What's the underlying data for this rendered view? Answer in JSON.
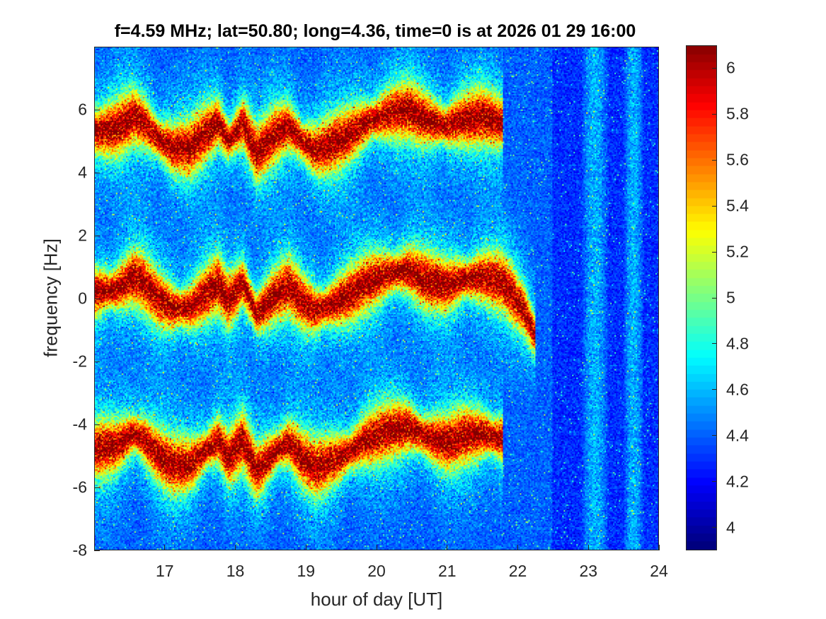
{
  "chart_data": {
    "type": "heatmap",
    "title": "f=4.59 MHz;  lat=50.80; long=4.36, time=0 is at 2026 01 29 16:00",
    "xlabel": "hour of day [UT]",
    "ylabel": "frequency [Hz]",
    "xlim": [
      16,
      24
    ],
    "ylim": [
      -8,
      8
    ],
    "x_ticks": [
      "17",
      "18",
      "19",
      "20",
      "21",
      "22",
      "23",
      "24"
    ],
    "y_ticks": [
      "6",
      "4",
      "2",
      "0",
      "-2",
      "-4",
      "-6",
      "-8"
    ],
    "colorbar": {
      "colormap": "jet",
      "clim": [
        3.9,
        6.1
      ],
      "ticks": [
        "6",
        "5.8",
        "5.6",
        "5.4",
        "5.2",
        "5",
        "4.8",
        "4.6",
        "4.4",
        "4.2",
        "4"
      ]
    },
    "traces": [
      {
        "offset": 0,
        "points": [
          [
            16.0,
            0.2
          ],
          [
            16.3,
            0.3
          ],
          [
            16.55,
            0.7
          ],
          [
            16.7,
            0.5
          ],
          [
            16.9,
            0.0
          ],
          [
            17.1,
            -0.3
          ],
          [
            17.35,
            -0.3
          ],
          [
            17.55,
            0.1
          ],
          [
            17.75,
            0.5
          ],
          [
            17.9,
            -0.1
          ],
          [
            18.1,
            0.5
          ],
          [
            18.3,
            -0.5
          ],
          [
            18.55,
            0.1
          ],
          [
            18.75,
            0.4
          ],
          [
            18.95,
            -0.1
          ],
          [
            19.15,
            -0.4
          ],
          [
            19.35,
            -0.2
          ],
          [
            19.6,
            0.1
          ],
          [
            19.85,
            0.5
          ],
          [
            20.2,
            0.8
          ],
          [
            20.45,
            0.9
          ],
          [
            20.7,
            0.6
          ],
          [
            21.0,
            0.4
          ],
          [
            21.2,
            0.6
          ],
          [
            21.5,
            0.7
          ],
          [
            21.8,
            0.5
          ],
          [
            22.1,
            -0.4
          ],
          [
            22.25,
            -1.2
          ]
        ]
      },
      {
        "offset": 5.1,
        "points": [
          [
            16.0,
            0.2
          ],
          [
            16.3,
            0.3
          ],
          [
            16.55,
            0.7
          ],
          [
            16.7,
            0.5
          ],
          [
            16.9,
            0.0
          ],
          [
            17.1,
            -0.3
          ],
          [
            17.35,
            -0.3
          ],
          [
            17.55,
            0.1
          ],
          [
            17.75,
            0.5
          ],
          [
            17.9,
            -0.1
          ],
          [
            18.1,
            0.5
          ],
          [
            18.3,
            -0.5
          ],
          [
            18.55,
            0.1
          ],
          [
            18.75,
            0.4
          ],
          [
            18.95,
            -0.1
          ],
          [
            19.15,
            -0.4
          ],
          [
            19.35,
            -0.2
          ],
          [
            19.6,
            0.1
          ],
          [
            19.85,
            0.5
          ],
          [
            20.2,
            0.8
          ],
          [
            20.45,
            0.9
          ],
          [
            20.7,
            0.6
          ],
          [
            21.0,
            0.4
          ],
          [
            21.2,
            0.6
          ],
          [
            21.5,
            0.7
          ],
          [
            21.8,
            0.5
          ]
        ]
      },
      {
        "offset": -5.0,
        "points": [
          [
            16.0,
            0.2
          ],
          [
            16.3,
            0.3
          ],
          [
            16.55,
            0.7
          ],
          [
            16.7,
            0.5
          ],
          [
            16.9,
            0.0
          ],
          [
            17.1,
            -0.3
          ],
          [
            17.35,
            -0.3
          ],
          [
            17.55,
            0.1
          ],
          [
            17.75,
            0.5
          ],
          [
            17.9,
            -0.1
          ],
          [
            18.1,
            0.5
          ],
          [
            18.3,
            -0.5
          ],
          [
            18.55,
            0.1
          ],
          [
            18.75,
            0.4
          ],
          [
            18.95,
            -0.1
          ],
          [
            19.15,
            -0.4
          ],
          [
            19.35,
            -0.2
          ],
          [
            19.6,
            0.1
          ],
          [
            19.85,
            0.5
          ],
          [
            20.2,
            0.8
          ],
          [
            20.45,
            0.9
          ],
          [
            20.7,
            0.6
          ],
          [
            21.0,
            0.4
          ],
          [
            21.2,
            0.6
          ],
          [
            21.5,
            0.7
          ],
          [
            21.8,
            0.5
          ]
        ]
      }
    ],
    "faint_bands": [
      [
        22.9,
        23.3
      ],
      [
        23.5,
        23.8
      ]
    ]
  }
}
